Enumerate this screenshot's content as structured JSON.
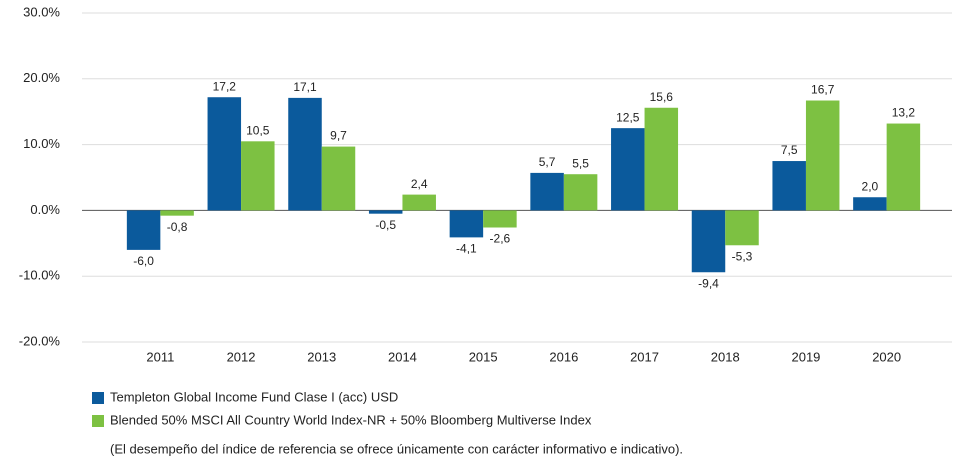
{
  "chart_data": {
    "type": "bar",
    "categories": [
      "2011",
      "2012",
      "2013",
      "2014",
      "2015",
      "2016",
      "2017",
      "2018",
      "2019",
      "2020"
    ],
    "series": [
      {
        "name": "Templeton Global Income Fund Clase I (acc) USD",
        "color": "#0b5a9c",
        "values": [
          -6.0,
          17.2,
          17.1,
          -0.5,
          -4.1,
          5.7,
          12.5,
          -9.4,
          7.5,
          2.0
        ],
        "value_labels": [
          "-6,0",
          "17,2",
          "17,1",
          "-0,5",
          "-4,1",
          "5,7",
          "12,5",
          "-9,4",
          "7,5",
          "2,0"
        ]
      },
      {
        "name": "Blended 50% MSCI All Country World Index-NR + 50% Bloomberg Multiverse Index",
        "color": "#7dc142",
        "values": [
          -0.8,
          10.5,
          9.7,
          2.4,
          -2.6,
          5.5,
          15.6,
          -5.3,
          16.7,
          13.2
        ],
        "value_labels": [
          "-0,8",
          "10,5",
          "9,7",
          "2,4",
          "-2,6",
          "5,5",
          "15,6",
          "-5,3",
          "16,7",
          "13,2"
        ]
      }
    ],
    "ylim": [
      -20,
      30
    ],
    "yticks": [
      {
        "value": -20,
        "label": "-20.0%"
      },
      {
        "value": -10,
        "label": "-10.0%"
      },
      {
        "value": 0,
        "label": "0.0%"
      },
      {
        "value": 10,
        "label": "10.0%"
      },
      {
        "value": 20,
        "label": "20.0%"
      },
      {
        "value": 30,
        "label": "30.0%"
      }
    ],
    "grid": true,
    "note": "(El desempeño del índice de referencia se ofrece únicamente con carácter informativo e indicativo)."
  }
}
